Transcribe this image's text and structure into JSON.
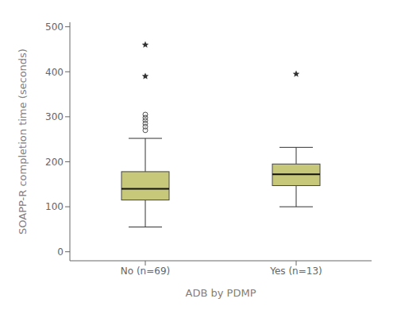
{
  "chart_data": {
    "type": "box",
    "title": "",
    "xlabel": "ADB by PDMP",
    "ylabel": "SOAPP-R completion time (seconds)",
    "categories": [
      "No (n=69)",
      "Yes (n=13)"
    ],
    "q1": [
      115,
      147
    ],
    "median": [
      140,
      172
    ],
    "q3": [
      178,
      195
    ],
    "whisker_low": [
      55,
      100
    ],
    "whisker_high": [
      252,
      232
    ],
    "outliers": [
      {
        "marker": "circle",
        "values": [
          [
            270,
            278,
            285,
            292,
            298,
            305
          ],
          []
        ]
      },
      {
        "marker": "star",
        "values": [
          [
            390,
            460
          ],
          [
            395
          ]
        ]
      }
    ],
    "color": "#c8c87a",
    "ylim": [
      -20,
      510
    ],
    "yticks": [
      0,
      100,
      200,
      300,
      400,
      500
    ],
    "grid": false
  }
}
